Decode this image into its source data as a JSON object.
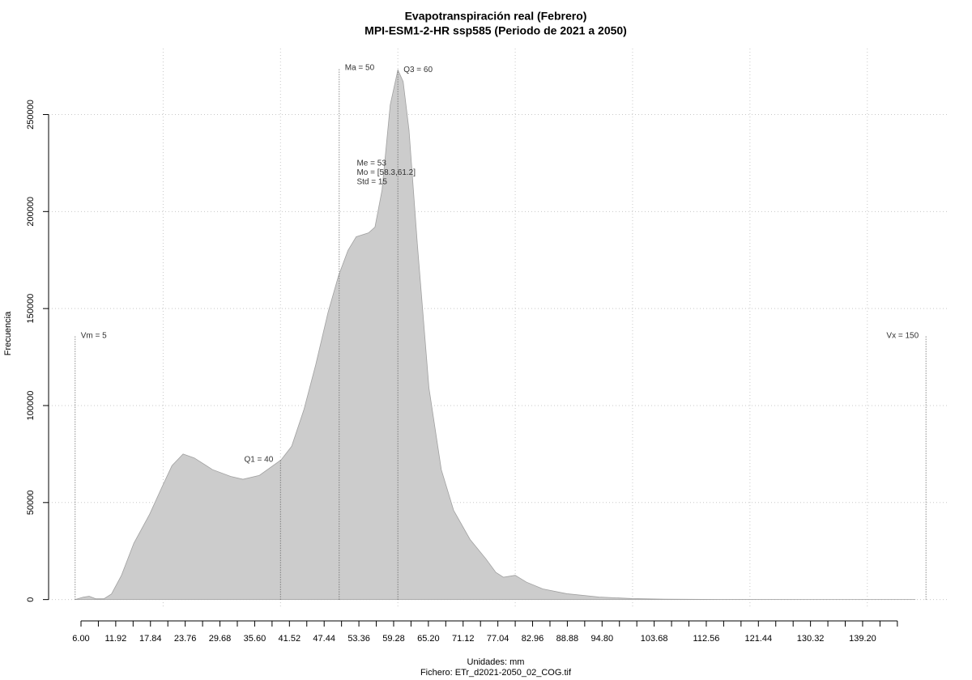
{
  "chart_data": {
    "type": "area",
    "title": "Evapotranspiración real (Febrero)",
    "subtitle": "MPI-ESM1-2-HR ssp585 (Periodo de 2021 a 2050)",
    "xlabel": "Unidades: mm",
    "ylabel": "Frecuencia",
    "footer": "Fichero: ETr_d2021-2050_02_COG.tif",
    "color": "#cccccc",
    "edge_color": "#a0a0a0",
    "grid": true,
    "xlim": [
      0.48,
      153.7
    ],
    "ylim": [
      -11000,
      284000
    ],
    "yticks": [
      0,
      50000,
      100000,
      150000,
      200000,
      250000
    ],
    "xticks": [
      {
        "value": 6,
        "label": "6.00"
      },
      {
        "value": 11.92,
        "label": "11.92"
      },
      {
        "value": 17.84,
        "label": "17.84"
      },
      {
        "value": 23.76,
        "label": "23.76"
      },
      {
        "value": 29.68,
        "label": "29.68"
      },
      {
        "value": 35.6,
        "label": "35.60"
      },
      {
        "value": 41.52,
        "label": "41.52"
      },
      {
        "value": 47.44,
        "label": "47.44"
      },
      {
        "value": 53.36,
        "label": "53.36"
      },
      {
        "value": 59.28,
        "label": "59.28"
      },
      {
        "value": 65.2,
        "label": "65.20"
      },
      {
        "value": 71.12,
        "label": "71.12"
      },
      {
        "value": 77.04,
        "label": "77.04"
      },
      {
        "value": 82.96,
        "label": "82.96"
      },
      {
        "value": 88.88,
        "label": "88.88"
      },
      {
        "value": 94.8,
        "label": "94.80"
      },
      {
        "value": 103.68,
        "label": "103.68"
      },
      {
        "value": 112.56,
        "label": "112.56"
      },
      {
        "value": 121.44,
        "label": "121.44"
      },
      {
        "value": 130.32,
        "label": "130.32"
      },
      {
        "value": 139.2,
        "label": "139.20"
      }
    ],
    "xminor_ticks": [
      8.96,
      14.88,
      20.8,
      26.72,
      32.64,
      38.56,
      44.48,
      50.4,
      56.32,
      62.24,
      68.16,
      74.08,
      80,
      85.92,
      91.84,
      97.76,
      100.72,
      106.64,
      109.6,
      115.52,
      118.48,
      124.4,
      127.36,
      133.28,
      136.24,
      142.16,
      145.12
    ],
    "xgrid": [
      20,
      40,
      60,
      80,
      100,
      120,
      140
    ],
    "x": [
      5,
      6.4,
      7.4,
      8.5,
      9.9,
      11.2,
      12.9,
      15,
      17.7,
      19.8,
      21.5,
      23.4,
      25.3,
      28.4,
      31.5,
      33.6,
      36.4,
      40.1,
      41.9,
      44,
      46,
      48.1,
      49.9,
      51.5,
      52.9,
      55,
      56.1,
      57.3,
      58.7,
      60,
      60.9,
      61.9,
      63.3,
      65.3,
      67.4,
      69.5,
      72.3,
      75,
      76.7,
      78,
      80,
      81.9,
      84.7,
      88.8,
      94.3,
      99.9,
      105.4,
      116.4,
      130.2,
      148.2
    ],
    "values": [
      0,
      1250,
      1700,
      400,
      400,
      2900,
      12500,
      29000,
      44000,
      58000,
      69000,
      75000,
      73000,
      67000,
      63500,
      62000,
      64000,
      72000,
      79000,
      98000,
      121000,
      148000,
      167000,
      180000,
      187000,
      189000,
      192000,
      211000,
      255000,
      273000,
      267000,
      242000,
      184000,
      109000,
      67000,
      46000,
      31000,
      21000,
      14000,
      11500,
      12500,
      9000,
      5500,
      3000,
      1300,
      500,
      200,
      50,
      10,
      0
    ],
    "markers": [
      {
        "label": "Vm = 5",
        "x": 5,
        "y": 136000,
        "side": "right"
      },
      {
        "label": "Q1 = 40",
        "x": 40,
        "y": 72000,
        "side": "left"
      },
      {
        "label": "Ma = 50",
        "x": 50,
        "y": 274000,
        "side": "right"
      },
      {
        "label": "Q3 = 60",
        "x": 60,
        "y": 273000,
        "side": "right"
      },
      {
        "label": "Vx = 150",
        "x": 150,
        "y": 136000,
        "side": "left"
      }
    ],
    "stats": [
      "Me = 53",
      "Mo = [58.3,61.2]",
      "Std = 15"
    ],
    "stats_x": 53
  }
}
